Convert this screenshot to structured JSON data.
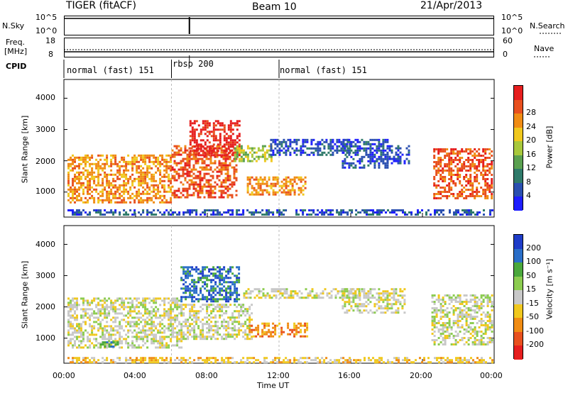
{
  "header": {
    "left_title": "TIGER (fitACF)",
    "center_title": "Beam 10",
    "date": "21/Apr/2013"
  },
  "status_panels": {
    "nsky_label": "N.Sky",
    "nsky_ticks": [
      "10^5",
      "10^0"
    ],
    "nsearch_label": "N.Search",
    "nsearch_ticks": [
      "10^5",
      "10^0"
    ],
    "freq_label_1": "Freq.",
    "freq_label_2": "[MHz]",
    "freq_ticks": [
      "18",
      "8"
    ],
    "nave_label": "Nave",
    "nave_ticks": [
      "60",
      "0"
    ],
    "cpid_label": "CPID",
    "cpid_segments": [
      {
        "label": "normal (fast) 151",
        "start_hour": 0
      },
      {
        "label": "rbsp 200",
        "start_hour": 6
      },
      {
        "label": "normal (fast) 151",
        "start_hour": 12
      }
    ],
    "nsky_spike_hour": 7.0
  },
  "chart_data": [
    {
      "type": "heatmap",
      "name": "power",
      "ylabel": "Slant Range [km]",
      "yticks": [
        "1000",
        "2000",
        "3000",
        "4000"
      ],
      "ylim": [
        200,
        4600
      ],
      "xlim": [
        0,
        24
      ],
      "colorbar_label": "Power [dB]",
      "colorbar_ticks": [
        "4",
        "8",
        "12",
        "16",
        "20",
        "24",
        "28"
      ],
      "colorbar_colors": [
        "#1e1eff",
        "#2a4fb0",
        "#2f7a6a",
        "#5aa050",
        "#a8c83c",
        "#f0c81e",
        "#f08c14",
        "#e8501e",
        "#e61e1e"
      ],
      "regions": [
        {
          "x0": 0.2,
          "x1": 6.0,
          "y0": 700,
          "y1": 2200,
          "level": 6
        },
        {
          "x0": 6.0,
          "x1": 9.6,
          "y0": 800,
          "y1": 2500,
          "level": 7
        },
        {
          "x0": 7.0,
          "x1": 9.8,
          "y0": 2200,
          "y1": 3300,
          "level": 8
        },
        {
          "x0": 9.5,
          "x1": 11.6,
          "y0": 2000,
          "y1": 2500,
          "level": 4
        },
        {
          "x0": 10.2,
          "x1": 13.5,
          "y0": 950,
          "y1": 1500,
          "level": 6
        },
        {
          "x0": 11.5,
          "x1": 16.0,
          "y0": 2200,
          "y1": 2700,
          "level": 1
        },
        {
          "x0": 15.5,
          "x1": 18.0,
          "y0": 1800,
          "y1": 2700,
          "level": 1
        },
        {
          "x0": 18.0,
          "x1": 19.2,
          "y0": 1900,
          "y1": 2500,
          "level": 1
        },
        {
          "x0": 20.6,
          "x1": 23.9,
          "y0": 800,
          "y1": 2400,
          "level": 7
        },
        {
          "x0": 0.2,
          "x1": 23.9,
          "y0": 250,
          "y1": 450,
          "level": 1
        }
      ]
    },
    {
      "type": "heatmap",
      "name": "velocity",
      "ylabel": "Slant Range [km]",
      "yticks": [
        "1000",
        "2000",
        "3000",
        "4000"
      ],
      "ylim": [
        200,
        4600
      ],
      "xlim": [
        0,
        24
      ],
      "xticks": [
        "00:00",
        "04:00",
        "08:00",
        "12:00",
        "16:00",
        "20:00",
        "00:00"
      ],
      "xlabel": "Time UT",
      "colorbar_label": "Velocity [m s⁻¹]",
      "colorbar_ticks": [
        "200",
        "100",
        "50",
        "15",
        "-15",
        "-50",
        "-100",
        "-200"
      ],
      "colorbar_colors": [
        "#1e3cc8",
        "#2a6ec8",
        "#4aa83c",
        "#8ccc50",
        "#c8c8c8",
        "#f0c81e",
        "#f08c14",
        "#e8501e",
        "#e61e1e"
      ],
      "regions": [
        {
          "x0": 0.2,
          "x1": 6.5,
          "y0": 700,
          "y1": 2300,
          "level": 4
        },
        {
          "x0": 6.5,
          "x1": 10.5,
          "y0": 1000,
          "y1": 2100,
          "level": 4
        },
        {
          "x0": 6.5,
          "x1": 9.8,
          "y0": 2200,
          "y1": 3300,
          "level": 1
        },
        {
          "x0": 10.0,
          "x1": 16.5,
          "y0": 2300,
          "y1": 2600,
          "level": 4
        },
        {
          "x0": 10.3,
          "x1": 13.6,
          "y0": 1050,
          "y1": 1500,
          "level": 6
        },
        {
          "x0": 15.5,
          "x1": 19.0,
          "y0": 1800,
          "y1": 2600,
          "level": 4
        },
        {
          "x0": 20.5,
          "x1": 23.9,
          "y0": 800,
          "y1": 2400,
          "level": 4
        },
        {
          "x0": 2.0,
          "x1": 3.0,
          "y0": 700,
          "y1": 900,
          "level": 2
        },
        {
          "x0": 0.2,
          "x1": 23.9,
          "y0": 250,
          "y1": 400,
          "level": 5
        }
      ]
    }
  ]
}
